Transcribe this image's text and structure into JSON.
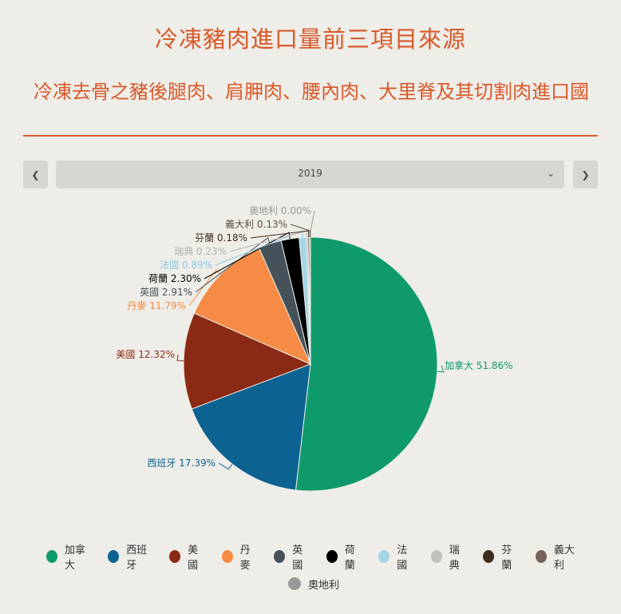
{
  "title": "冷凍豬肉進口量前三項目來源",
  "subtitle": "冷凍去骨之豬後腿肉、肩胛肉、腰內肉、大里脊及其切割肉進口國",
  "selector": {
    "value": "2019",
    "prev_icon": "chevron-left-icon",
    "next_icon": "chevron-right-icon",
    "dropdown_icon": "chevron-down-icon"
  },
  "chart_data": {
    "type": "pie",
    "categories": [
      "加拿大",
      "西班牙",
      "美國",
      "丹麥",
      "英國",
      "荷蘭",
      "法國",
      "瑞典",
      "芬蘭",
      "義大利",
      "奧地利"
    ],
    "values": [
      51.86,
      17.39,
      12.32,
      11.79,
      2.91,
      2.3,
      0.89,
      0.23,
      0.18,
      0.13,
      0.0
    ],
    "colors": [
      "#0f9a6c",
      "#0c6291",
      "#8b2a14",
      "#f58b44",
      "#46525a",
      "#000000",
      "#a2d6e7",
      "#c1c0bc",
      "#3e2c1e",
      "#75625a",
      "#999999"
    ],
    "labels": [
      "加拿大 51.86%",
      "西班牙 17.39%",
      "美國 12.32%",
      "丹麥 11.79%",
      "英國 2.91%",
      "荷蘭 2.30%",
      "法國 0.89%",
      "瑞典 0.23%",
      "芬蘭 0.18%",
      "義大利 0.13%",
      "奧地利 0.00%"
    ],
    "label_colors": [
      "#0f9a6c",
      "#0c6291",
      "#8b2a14",
      "#f58b44",
      "#46525a",
      "#000000",
      "#8ccbe0",
      "#b5b4af",
      "#3e2c1e",
      "#5f4e47",
      "#999999"
    ],
    "legend_placement": "bottom"
  }
}
